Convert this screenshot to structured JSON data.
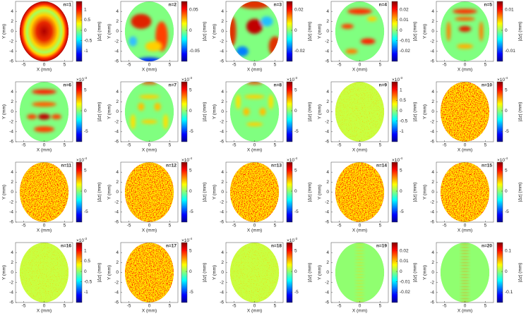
{
  "chart_data": [
    {
      "type": "heatmap",
      "title": "n=1",
      "xlabel": "X (mm)",
      "ylabel": "Y (mm)",
      "xlim": [
        -7,
        7
      ],
      "ylim": [
        -6,
        6
      ],
      "xticks": [
        -5,
        0,
        5
      ],
      "yticks": [
        4,
        2,
        0,
        -2,
        -4,
        -6
      ],
      "colorbar": {
        "label": "|Δz| (mm)",
        "lim": [
          -1.5,
          1.4
        ],
        "ticks": [
          1,
          0.5,
          0,
          -0.5,
          -1
        ]
      }
    },
    {
      "type": "heatmap",
      "title": "n=2",
      "xlabel": "X (mm)",
      "ylabel": "Y (mm)",
      "xlim": [
        -7,
        7
      ],
      "ylim": [
        -6,
        6
      ],
      "xticks": [
        -5,
        0,
        5
      ],
      "yticks": [
        4,
        2,
        0,
        -2,
        -4,
        -6
      ],
      "colorbar": {
        "label": "|Δz| (mm)",
        "lim": [
          -0.075,
          0.07
        ],
        "ticks": [
          0.05,
          0,
          -0.05
        ]
      }
    },
    {
      "type": "heatmap",
      "title": "n=3",
      "xlabel": "X (mm)",
      "ylabel": "Y (mm)",
      "xlim": [
        -7,
        7
      ],
      "ylim": [
        -6,
        6
      ],
      "xticks": [
        -5,
        0,
        5
      ],
      "yticks": [
        4,
        2,
        0,
        -2,
        -4,
        -6
      ],
      "colorbar": {
        "label": "|Δz| (mm)",
        "lim": [
          -0.03,
          0.028
        ],
        "ticks": [
          0.02,
          0,
          -0.02
        ]
      }
    },
    {
      "type": "heatmap",
      "title": "n=4",
      "xlabel": "X (mm)",
      "ylabel": "Y (mm)",
      "xlim": [
        -7,
        7
      ],
      "ylim": [
        -6,
        6
      ],
      "xticks": [
        -5,
        0,
        5
      ],
      "yticks": [
        4,
        2,
        0,
        -2,
        -4,
        -6
      ],
      "colorbar": {
        "label": "|Δz| (mm)",
        "lim": [
          -0.03,
          0.028
        ],
        "ticks": [
          0.02,
          0.01,
          0,
          -0.01,
          -0.02
        ]
      }
    },
    {
      "type": "heatmap",
      "title": "n=5",
      "xlabel": "X (mm)",
      "ylabel": "Y (mm)",
      "xlim": [
        -7,
        7
      ],
      "ylim": [
        -6,
        6
      ],
      "xticks": [
        -5,
        0,
        5
      ],
      "yticks": [
        4,
        2,
        0,
        -2,
        -4,
        -6
      ],
      "colorbar": {
        "label": "|Δz| (mm)",
        "lim": [
          -0.015,
          0.014
        ],
        "ticks": [
          0.01,
          0,
          -0.01
        ]
      }
    },
    {
      "type": "heatmap",
      "title": "n=6",
      "xlabel": "X (mm)",
      "ylabel": "Y (mm)",
      "xlim": [
        -7,
        7
      ],
      "ylim": [
        -6,
        6
      ],
      "xticks": [
        -5,
        0,
        5
      ],
      "yticks": [
        4,
        2,
        0,
        -2,
        -4,
        -6
      ],
      "colorbar": {
        "label": "|Δz| (mm)",
        "lim": [
          -7.5,
          7
        ],
        "ticks": [
          5,
          0,
          -5
        ],
        "multiplier": "×10",
        "exponent": "-3"
      }
    },
    {
      "type": "heatmap",
      "title": "n=7",
      "xlabel": "X (mm)",
      "ylabel": "Y (mm)",
      "xlim": [
        -7,
        7
      ],
      "ylim": [
        -6,
        6
      ],
      "xticks": [
        -5,
        0,
        5
      ],
      "yticks": [
        4,
        2,
        0,
        -2,
        -4,
        -6
      ],
      "colorbar": {
        "label": "|Δz| (mm)",
        "lim": [
          -7.5,
          7
        ],
        "ticks": [
          5,
          0,
          -5
        ],
        "multiplier": "×10",
        "exponent": "-3"
      }
    },
    {
      "type": "heatmap",
      "title": "n=8",
      "xlabel": "X (mm)",
      "ylabel": "Y (mm)",
      "xlim": [
        -7,
        7
      ],
      "ylim": [
        -6,
        6
      ],
      "xticks": [
        -5,
        0,
        5
      ],
      "yticks": [
        4,
        2,
        0,
        -2,
        -4,
        -6
      ],
      "colorbar": {
        "label": "|Δz| (mm)",
        "lim": [
          -7.5,
          7
        ],
        "ticks": [
          5,
          0,
          -5
        ],
        "multiplier": "×10",
        "exponent": "-3"
      }
    },
    {
      "type": "heatmap",
      "title": "n=9",
      "xlabel": "X (mm)",
      "ylabel": "Y (mm)",
      "xlim": [
        -7,
        7
      ],
      "ylim": [
        -6,
        6
      ],
      "xticks": [
        -5,
        0,
        5
      ],
      "yticks": [
        4,
        2,
        0,
        -2,
        -4,
        -6
      ],
      "colorbar": {
        "label": "|Δz| (mm)",
        "lim": [
          -1.5,
          1.4
        ],
        "ticks": [
          1,
          0.5,
          0,
          -0.5,
          -1
        ],
        "multiplier": "×10",
        "exponent": "-3"
      }
    },
    {
      "type": "heatmap",
      "title": "n=10",
      "xlabel": "X (mm)",
      "ylabel": "Y (mm)",
      "xlim": [
        -7,
        7
      ],
      "ylim": [
        -6,
        6
      ],
      "xticks": [
        -5,
        0,
        5
      ],
      "yticks": [
        4,
        2,
        0,
        -2,
        -4,
        -6
      ],
      "colorbar": {
        "label": "|Δz| (mm)",
        "lim": [
          -7.5,
          7
        ],
        "ticks": [
          5,
          0,
          -5
        ],
        "multiplier": "×10",
        "exponent": "-4"
      }
    },
    {
      "type": "heatmap",
      "title": "n=11",
      "xlabel": "X (mm)",
      "ylabel": "Y (mm)",
      "xlim": [
        -7,
        7
      ],
      "ylim": [
        -6,
        6
      ],
      "xticks": [
        -5,
        0,
        5
      ],
      "yticks": [
        4,
        2,
        0,
        -2,
        -4,
        -6
      ],
      "colorbar": {
        "label": "|Δz| (mm)",
        "lim": [
          -7.5,
          7
        ],
        "ticks": [
          5,
          0,
          -5
        ],
        "multiplier": "×10",
        "exponent": "-4"
      }
    },
    {
      "type": "heatmap",
      "title": "n=12",
      "xlabel": "X (mm)",
      "ylabel": "Y (mm)",
      "xlim": [
        -7,
        7
      ],
      "ylim": [
        -6,
        6
      ],
      "xticks": [
        -5,
        0,
        5
      ],
      "yticks": [
        4,
        2,
        0,
        -2,
        -4,
        -6
      ],
      "colorbar": {
        "label": "|Δz| (mm)",
        "lim": [
          -7.5,
          7
        ],
        "ticks": [
          5,
          0,
          -5
        ],
        "multiplier": "×10",
        "exponent": "-4"
      }
    },
    {
      "type": "heatmap",
      "title": "n=13",
      "xlabel": "X (mm)",
      "ylabel": "Y (mm)",
      "xlim": [
        -7,
        7
      ],
      "ylim": [
        -6,
        6
      ],
      "xticks": [
        -5,
        0,
        5
      ],
      "yticks": [
        4,
        2,
        0,
        -2,
        -4,
        -6
      ],
      "colorbar": {
        "label": "|Δz| (mm)",
        "lim": [
          -7.5,
          7
        ],
        "ticks": [
          5,
          0,
          -5
        ],
        "multiplier": "×10",
        "exponent": "-4"
      }
    },
    {
      "type": "heatmap",
      "title": "n=14",
      "xlabel": "X (mm)",
      "ylabel": "Y (mm)",
      "xlim": [
        -7,
        7
      ],
      "ylim": [
        -6,
        6
      ],
      "xticks": [
        -5,
        0,
        5
      ],
      "yticks": [
        4,
        2,
        0,
        -2,
        -4,
        -6
      ],
      "colorbar": {
        "label": "|Δz| (mm)",
        "lim": [
          -7.5,
          7
        ],
        "ticks": [
          5,
          0,
          -5
        ],
        "multiplier": "×10",
        "exponent": "-4"
      }
    },
    {
      "type": "heatmap",
      "title": "n=15",
      "xlabel": "X (mm)",
      "ylabel": "Y (mm)",
      "xlim": [
        -7,
        7
      ],
      "ylim": [
        -6,
        6
      ],
      "xticks": [
        -5,
        0,
        5
      ],
      "yticks": [
        4,
        2,
        0,
        -2,
        -4,
        -6
      ],
      "colorbar": {
        "label": "|Δz| (mm)",
        "lim": [
          -7.5,
          7
        ],
        "ticks": [
          5,
          0,
          -5
        ],
        "multiplier": "×10",
        "exponent": "-4"
      }
    },
    {
      "type": "heatmap",
      "title": "n=16",
      "xlabel": "X (mm)",
      "ylabel": "Y (mm)",
      "xlim": [
        -7,
        7
      ],
      "ylim": [
        -6,
        6
      ],
      "xticks": [
        -5,
        0,
        5
      ],
      "yticks": [
        4,
        2,
        0,
        -2,
        -4,
        -6
      ],
      "colorbar": {
        "label": "|Δz| (mm)",
        "lim": [
          -1.5,
          1.4
        ],
        "ticks": [
          1,
          0.5,
          0,
          -0.5,
          -1
        ],
        "multiplier": "×10",
        "exponent": "-3"
      }
    },
    {
      "type": "heatmap",
      "title": "n=17",
      "xlabel": "X (mm)",
      "ylabel": "Y (mm)",
      "xlim": [
        -7,
        7
      ],
      "ylim": [
        -6,
        6
      ],
      "xticks": [
        -5,
        0,
        5
      ],
      "yticks": [
        4,
        2,
        0,
        -2,
        -4,
        -6
      ],
      "colorbar": {
        "label": "|Δz| (mm)",
        "lim": [
          -7.5,
          7
        ],
        "ticks": [
          5,
          0,
          -5
        ],
        "multiplier": "×10",
        "exponent": "-4"
      }
    },
    {
      "type": "heatmap",
      "title": "n=18",
      "xlabel": "X (mm)",
      "ylabel": "Y (mm)",
      "xlim": [
        -7,
        7
      ],
      "ylim": [
        -6,
        6
      ],
      "xticks": [
        -5,
        0,
        5
      ],
      "yticks": [
        4,
        2,
        0,
        -2,
        -4,
        -6
      ],
      "colorbar": {
        "label": "|Δz| (mm)",
        "lim": [
          -7.5,
          7
        ],
        "ticks": [
          5,
          0,
          -5
        ],
        "multiplier": "×10",
        "exponent": "-3"
      }
    },
    {
      "type": "heatmap",
      "title": "n=19",
      "xlabel": "X (mm)",
      "ylabel": "Y (mm)",
      "xlim": [
        -7,
        7
      ],
      "ylim": [
        -6,
        6
      ],
      "xticks": [
        -5,
        0,
        5
      ],
      "yticks": [
        4,
        2,
        0,
        -2,
        -4,
        -6
      ],
      "colorbar": {
        "label": "|Δz| (mm)",
        "lim": [
          -0.03,
          0.028
        ],
        "ticks": [
          0.02,
          0.01,
          0,
          -0.01,
          -0.02
        ]
      }
    },
    {
      "type": "heatmap",
      "title": "n=20",
      "xlabel": "X (mm)",
      "ylabel": "Y (mm)",
      "xlim": [
        -7,
        7
      ],
      "ylim": [
        -6,
        6
      ],
      "xticks": [
        -5,
        0,
        5
      ],
      "yticks": [
        4,
        2,
        0,
        -2,
        -4,
        -6
      ],
      "colorbar": {
        "label": "|Δz| (mm)",
        "lim": [
          -0.15,
          0.14
        ],
        "ticks": [
          0.1,
          0,
          -0.1
        ]
      }
    }
  ]
}
